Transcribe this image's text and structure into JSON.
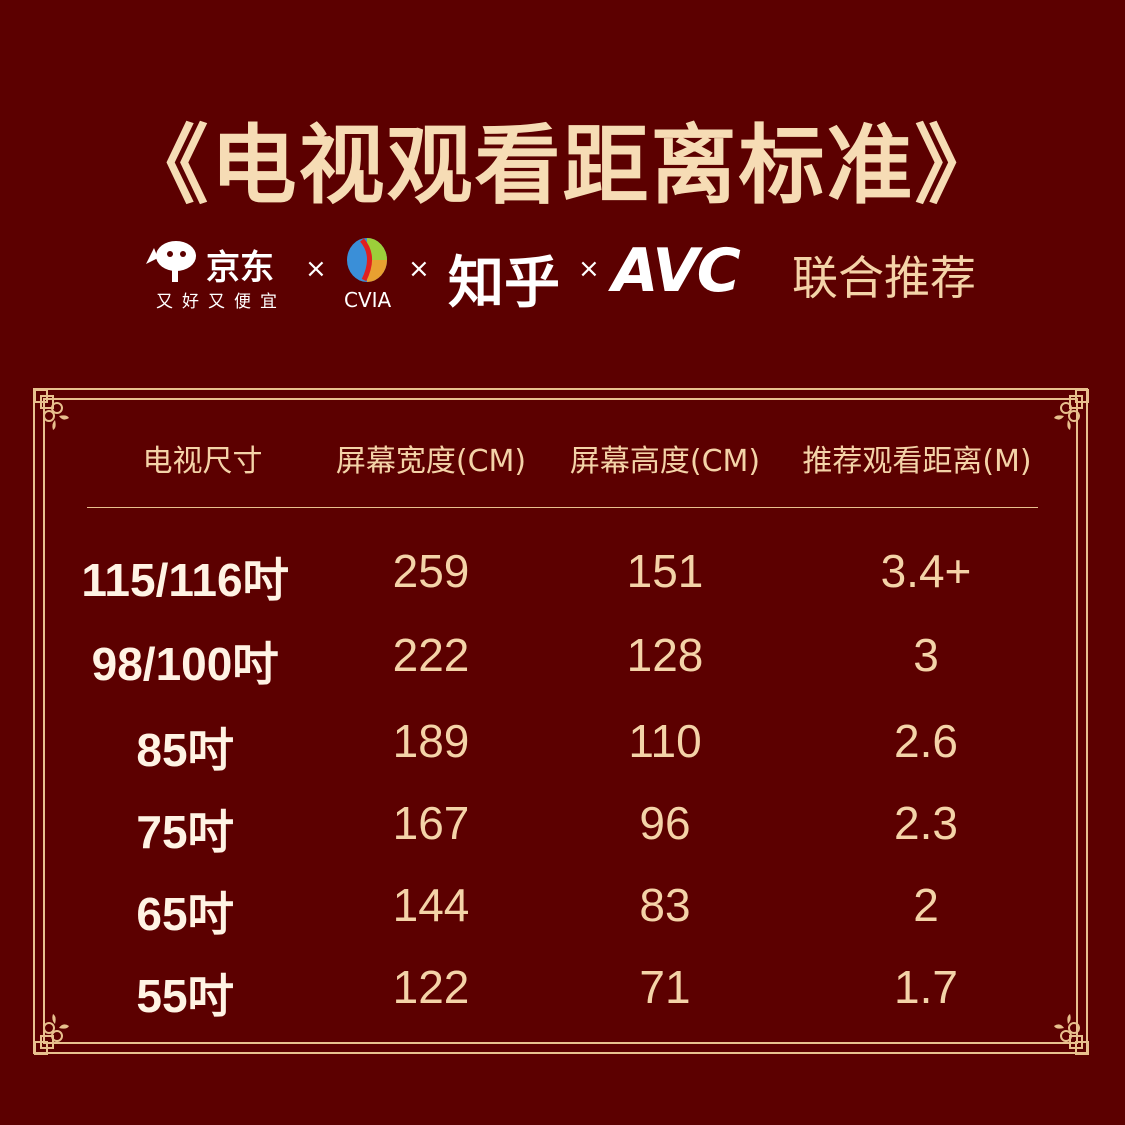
{
  "title": "《电视观看距离标准》",
  "partners": {
    "jd": {
      "name": "京东",
      "slogan": "又好又便宜"
    },
    "cvia": "CVIA",
    "zhihu": "知乎",
    "avc": "AVC",
    "separator": "×",
    "tagline": "联合推荐"
  },
  "colors": {
    "background": "#5c0000",
    "gold": "#f4d3a8",
    "row_label": "#fff3e4"
  },
  "table": {
    "headers": [
      "电视尺寸",
      "屏幕宽度(CM)",
      "屏幕高度(CM)",
      "推荐观看距离(M)"
    ],
    "rows": [
      [
        "115/116吋",
        "259",
        "151",
        "3.4+"
      ],
      [
        "98/100吋",
        "222",
        "128",
        "3"
      ],
      [
        "85吋",
        "189",
        "110",
        "2.6"
      ],
      [
        "75吋",
        "167",
        "96",
        "2.3"
      ],
      [
        "65吋",
        "144",
        "83",
        "2"
      ],
      [
        "55吋",
        "122",
        "71",
        "1.7"
      ]
    ]
  }
}
